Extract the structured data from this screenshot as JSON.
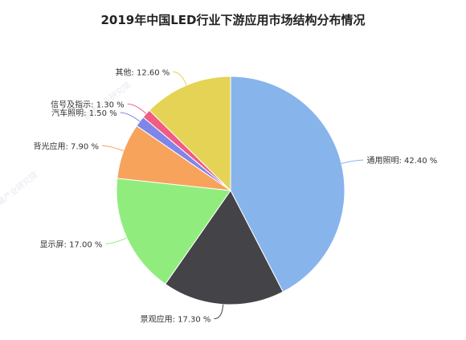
{
  "chart_data": {
    "type": "pie",
    "title": "2019年中国LED行业下游应用市场结构分布情况",
    "slices": [
      {
        "label": "通用照明",
        "value": 42.4,
        "text": "通用照明: 42.40 %",
        "color": "#88b4ec"
      },
      {
        "label": "景观应用",
        "value": 17.3,
        "text": "景观应用: 17.30 %",
        "color": "#434348"
      },
      {
        "label": "显示屏",
        "value": 17.0,
        "text": "显示屏: 17.00 %",
        "color": "#90ed7d"
      },
      {
        "label": "背光应用",
        "value": 7.9,
        "text": "背光应用: 7.90 %",
        "color": "#f7a35c"
      },
      {
        "label": "汽车照明",
        "value": 1.5,
        "text": "汽车照明: 1.50 %",
        "color": "#8085e9"
      },
      {
        "label": "信号及指示",
        "value": 1.3,
        "text": "信号及指示: 1.30 %",
        "color": "#f15c80"
      },
      {
        "label": "其他",
        "value": 12.6,
        "text": "其他: 12.60 %",
        "color": "#e4d354"
      }
    ]
  },
  "watermark": {
    "text": "前瞻产业研究院"
  }
}
